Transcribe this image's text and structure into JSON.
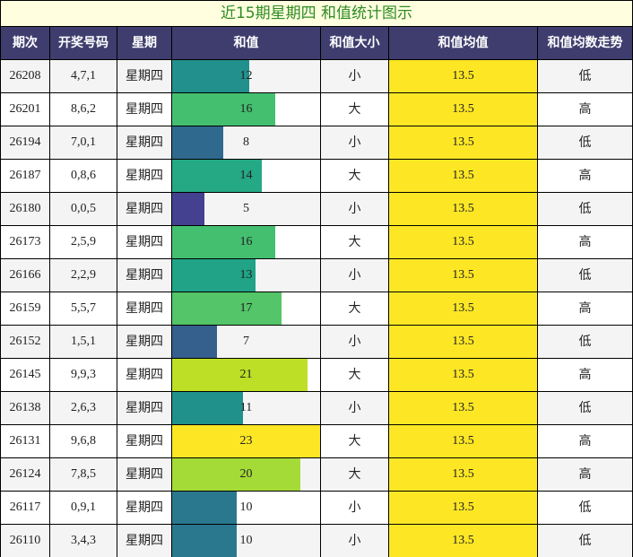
{
  "title": "近15期星期四 和值统计图示",
  "columns": [
    "期次",
    "开奖号码",
    "星期",
    "和值",
    "和值大小",
    "和值均值",
    "和值均数走势"
  ],
  "colors": {
    "header_bg": "#3f3d6e",
    "title_bg": "#ffffe0",
    "title_text": "#2e8b22",
    "row_even": "#f4f4f4",
    "row_odd": "#ffffff",
    "mean_fill": "#fde725"
  },
  "chart_data": {
    "type": "table",
    "title": "近15期星期四 和值统计图示",
    "bar_scale_max": 23,
    "rows": [
      {
        "period": "26208",
        "numbers": "4,7,1",
        "weekday": "星期四",
        "sum": 12,
        "size": "小",
        "mean": "13.5",
        "trend": "低",
        "bar_color": "#22908c"
      },
      {
        "period": "26201",
        "numbers": "8,6,2",
        "weekday": "星期四",
        "sum": 16,
        "size": "大",
        "mean": "13.5",
        "trend": "高",
        "bar_color": "#44bf70"
      },
      {
        "period": "26194",
        "numbers": "7,0,1",
        "weekday": "星期四",
        "sum": 8,
        "size": "小",
        "mean": "13.5",
        "trend": "低",
        "bar_color": "#30698e"
      },
      {
        "period": "26187",
        "numbers": "0,8,6",
        "weekday": "星期四",
        "sum": 14,
        "size": "大",
        "mean": "13.5",
        "trend": "高",
        "bar_color": "#25a884"
      },
      {
        "period": "26180",
        "numbers": "0,0,5",
        "weekday": "星期四",
        "sum": 5,
        "size": "小",
        "mean": "13.5",
        "trend": "低",
        "bar_color": "#434190"
      },
      {
        "period": "26173",
        "numbers": "2,5,9",
        "weekday": "星期四",
        "sum": 16,
        "size": "大",
        "mean": "13.5",
        "trend": "高",
        "bar_color": "#44bf70"
      },
      {
        "period": "26166",
        "numbers": "2,2,9",
        "weekday": "星期四",
        "sum": 13,
        "size": "小",
        "mean": "13.5",
        "trend": "低",
        "bar_color": "#20a386"
      },
      {
        "period": "26159",
        "numbers": "5,5,7",
        "weekday": "星期四",
        "sum": 17,
        "size": "大",
        "mean": "13.5",
        "trend": "高",
        "bar_color": "#54c568"
      },
      {
        "period": "26152",
        "numbers": "1,5,1",
        "weekday": "星期四",
        "sum": 7,
        "size": "小",
        "mean": "13.5",
        "trend": "低",
        "bar_color": "#355f8d"
      },
      {
        "period": "26145",
        "numbers": "9,9,3",
        "weekday": "星期四",
        "sum": 21,
        "size": "大",
        "mean": "13.5",
        "trend": "高",
        "bar_color": "#bddf26"
      },
      {
        "period": "26138",
        "numbers": "2,6,3",
        "weekday": "星期四",
        "sum": 11,
        "size": "小",
        "mean": "13.5",
        "trend": "低",
        "bar_color": "#21918c"
      },
      {
        "period": "26131",
        "numbers": "9,6,8",
        "weekday": "星期四",
        "sum": 23,
        "size": "大",
        "mean": "13.5",
        "trend": "高",
        "bar_color": "#fde725"
      },
      {
        "period": "26124",
        "numbers": "7,8,5",
        "weekday": "星期四",
        "sum": 20,
        "size": "大",
        "mean": "13.5",
        "trend": "高",
        "bar_color": "#a5db36"
      },
      {
        "period": "26117",
        "numbers": "0,9,1",
        "weekday": "星期四",
        "sum": 10,
        "size": "小",
        "mean": "13.5",
        "trend": "低",
        "bar_color": "#2a788e"
      },
      {
        "period": "26110",
        "numbers": "3,4,3",
        "weekday": "星期四",
        "sum": 10,
        "size": "小",
        "mean": "13.5",
        "trend": "低",
        "bar_color": "#2a788e"
      }
    ]
  }
}
